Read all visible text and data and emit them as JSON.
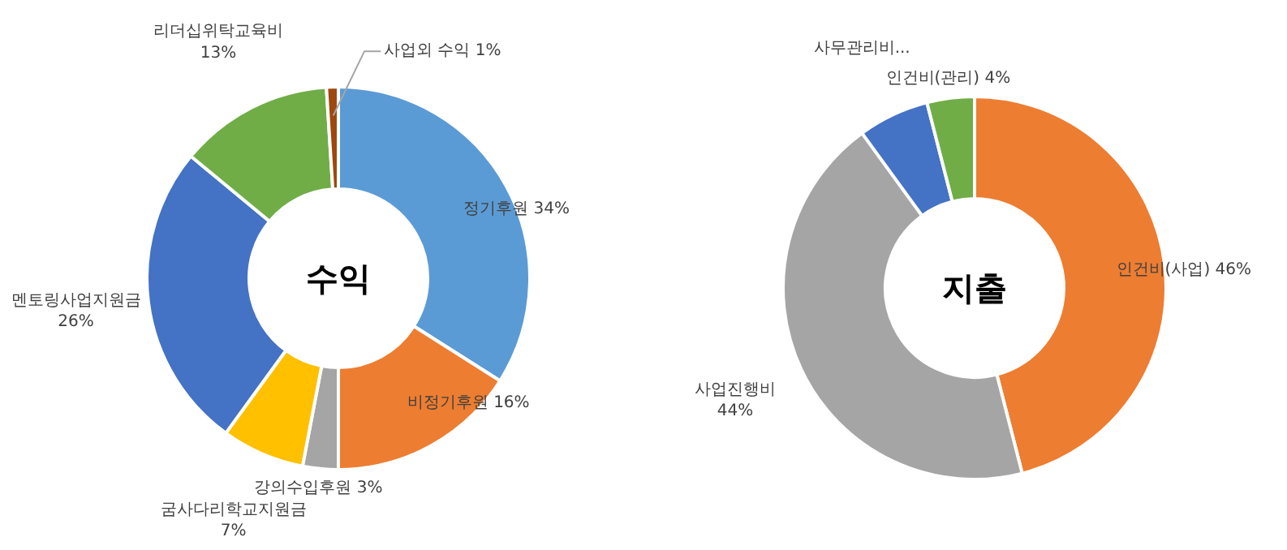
{
  "chart_data": [
    {
      "type": "donut",
      "title": "수익",
      "categories": [
        "정기후원",
        "비정기후원",
        "강의수입후원",
        "굼사다리학교지원금",
        "멘토링사업지원금",
        "리더십위탁교육비",
        "사업외 수익"
      ],
      "values": [
        34,
        16,
        3,
        7,
        26,
        13,
        1
      ],
      "value_labels": [
        "34%",
        "16%",
        "3%",
        "7%",
        "26%",
        "13%",
        "1%"
      ],
      "colors": [
        "#5b9bd5",
        "#ed7d31",
        "#a5a5a5",
        "#ffc000",
        "#4472c4",
        "#70ad47",
        "#9e480e"
      ]
    },
    {
      "type": "donut",
      "title": "지출",
      "categories": [
        "인건비(사업)",
        "사업진행비",
        "사무관리비...",
        "인건비(관리)"
      ],
      "values": [
        46,
        44,
        6,
        4
      ],
      "value_labels": [
        "46%",
        "44%",
        null,
        "4%"
      ],
      "colors": [
        "#ed7d31",
        "#a5a5a5",
        "#4472c4",
        "#70ad47"
      ]
    }
  ]
}
